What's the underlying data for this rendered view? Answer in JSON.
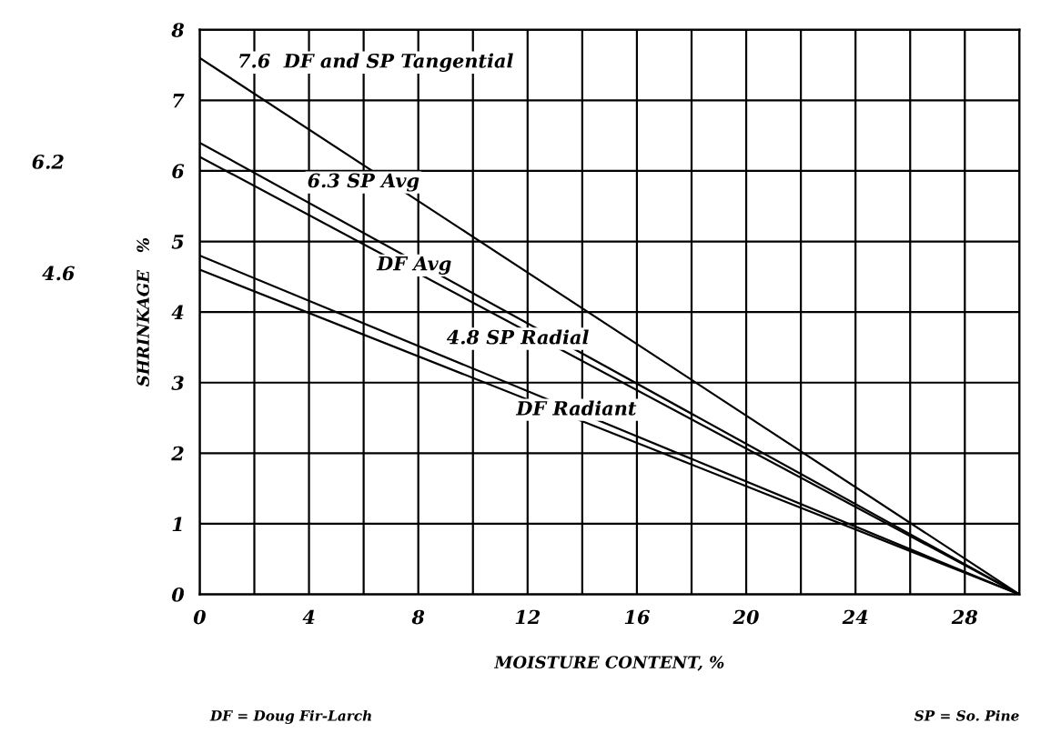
{
  "chart_data": {
    "type": "line",
    "xlabel": "MOISTURE CONTENT, %",
    "ylabel": "SHRINKAGE   %",
    "x": [
      0,
      30
    ],
    "series": [
      {
        "name": "7.6  DF and SP Tangential",
        "color": "#000000",
        "values": [
          7.6,
          0
        ]
      },
      {
        "name": "6.3 SP Avg",
        "color": "#000000",
        "values": [
          6.4,
          0
        ]
      },
      {
        "name": "DF Avg",
        "color": "#000000",
        "values": [
          6.2,
          0
        ]
      },
      {
        "name": "4.8 SP Radial",
        "color": "#000000",
        "values": [
          4.8,
          0
        ]
      },
      {
        "name": "DF Radiant",
        "color": "#000000",
        "values": [
          4.6,
          0
        ]
      }
    ],
    "annotations": [
      "6.2",
      "4.6",
      "DF = Doug Fir-Larch",
      "SP = So. Pine"
    ],
    "xlim": [
      0,
      30
    ],
    "ylim": [
      0,
      8
    ],
    "xticks": [
      0,
      {
        "value": 2,
        "label": null
      },
      4,
      {
        "value": 6,
        "label": null
      },
      8,
      {
        "value": 10,
        "label": null
      },
      12,
      {
        "value": 14,
        "label": null
      },
      16,
      {
        "value": 18,
        "label": null
      },
      20,
      {
        "value": 22,
        "label": null
      },
      24,
      {
        "value": 26,
        "label": null
      },
      28,
      {
        "value": 30,
        "label": null
      }
    ],
    "yticks": [
      0,
      1,
      2,
      3,
      4,
      5,
      6,
      7,
      8
    ],
    "grid": true,
    "marker": "none",
    "line_style": "solid"
  }
}
